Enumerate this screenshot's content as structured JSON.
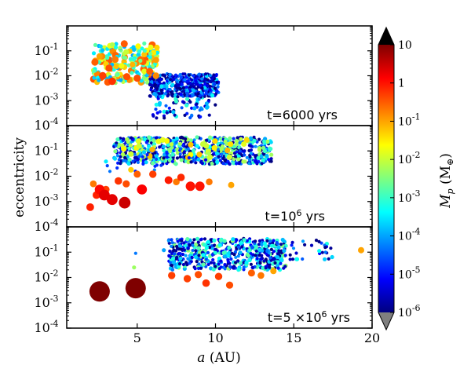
{
  "chart_data": {
    "type": "scatter",
    "xlabel_var": "a",
    "xlabel_unit": "(AU)",
    "ylabel": "eccentricity",
    "xlim": [
      0.5,
      20
    ],
    "ylim": [
      0.0001,
      1
    ],
    "x_ticks": [
      {
        "value": 5,
        "label": "5"
      },
      {
        "value": 10,
        "label": "10"
      },
      {
        "value": 15,
        "label": "15"
      },
      {
        "value": 20,
        "label": "20"
      }
    ],
    "y_ticks": [
      {
        "value": 0.1,
        "base": "10",
        "exp": "-1"
      },
      {
        "value": 0.01,
        "base": "10",
        "exp": "-2"
      },
      {
        "value": 0.001,
        "base": "10",
        "exp": "-3"
      },
      {
        "value": 0.0001,
        "base": "10",
        "exp": "-4"
      }
    ],
    "panels": [
      {
        "id": "t6000",
        "label_pre": "t=6000 yrs",
        "label_sup": "",
        "label_post": "",
        "points": [
          {
            "a": 2.3,
            "e": 0.035,
            "m": 0.3
          },
          {
            "a": 2.6,
            "e": 0.06,
            "m": 0.1
          },
          {
            "a": 3.0,
            "e": 0.03,
            "m": 0.05
          },
          {
            "a": 3.2,
            "e": 0.02,
            "m": 0.4
          },
          {
            "a": 3.6,
            "e": 0.045,
            "m": 0.2
          },
          {
            "a": 4.0,
            "e": 0.025,
            "m": 0.02
          },
          {
            "a": 4.3,
            "e": 0.09,
            "m": 0.01
          },
          {
            "a": 4.7,
            "e": 0.028,
            "m": 0.08
          },
          {
            "a": 5.2,
            "e": 0.04,
            "m": 0.003
          },
          {
            "a": 5.8,
            "e": 0.015,
            "m": 0.3
          },
          {
            "a": 3.4,
            "e": 0.006,
            "m": 0.6
          },
          {
            "a": 2.8,
            "e": 0.01,
            "m": 0.5
          },
          {
            "a": 5.0,
            "e": 0.008,
            "m": 0.4
          },
          {
            "a": 6.2,
            "e": 0.01,
            "m": 0.15
          }
        ],
        "clusters": [
          {
            "a0": 2.2,
            "a1": 6.3,
            "e0": 0.005,
            "e1": 0.2,
            "n": 230,
            "m0": 0.0001,
            "m1": 0.5
          },
          {
            "a0": 5.8,
            "a1": 10.2,
            "e0": 0.0015,
            "e1": 0.012,
            "n": 420,
            "m0": 1e-06,
            "m1": 0.0003
          },
          {
            "a0": 6.0,
            "a1": 10.0,
            "e0": 0.0002,
            "e1": 0.002,
            "n": 80,
            "m0": 1e-06,
            "m1": 0.001
          }
        ]
      },
      {
        "id": "t1e6",
        "label_pre": "t=10",
        "label_sup": "6",
        "label_post": " yrs",
        "points": [
          {
            "a": 2.0,
            "e": 0.0006,
            "m": 0.8
          },
          {
            "a": 2.4,
            "e": 0.0018,
            "m": 0.8
          },
          {
            "a": 2.9,
            "e": 0.0018,
            "m": 2.0
          },
          {
            "a": 3.4,
            "e": 0.0012,
            "m": 2.0
          },
          {
            "a": 4.2,
            "e": 0.0009,
            "m": 3.0
          },
          {
            "a": 2.6,
            "e": 0.003,
            "m": 1.2
          },
          {
            "a": 3.0,
            "e": 0.003,
            "m": 0.5
          },
          {
            "a": 2.2,
            "e": 0.005,
            "m": 0.2
          },
          {
            "a": 4.3,
            "e": 0.005,
            "m": 0.4
          },
          {
            "a": 3.8,
            "e": 0.0065,
            "m": 0.6
          },
          {
            "a": 5.3,
            "e": 0.003,
            "m": 1.4
          },
          {
            "a": 5.0,
            "e": 0.012,
            "m": 0.3
          },
          {
            "a": 6.0,
            "e": 0.012,
            "m": 0.5
          },
          {
            "a": 7.0,
            "e": 0.007,
            "m": 0.9
          },
          {
            "a": 7.5,
            "e": 0.006,
            "m": 0.2
          },
          {
            "a": 7.8,
            "e": 0.009,
            "m": 0.7
          },
          {
            "a": 8.4,
            "e": 0.004,
            "m": 1.0
          },
          {
            "a": 9.0,
            "e": 0.004,
            "m": 1.0
          },
          {
            "a": 9.6,
            "e": 0.006,
            "m": 0.2
          },
          {
            "a": 11.0,
            "e": 0.0045,
            "m": 0.1
          },
          {
            "a": 4.6,
            "e": 0.018,
            "m": 0.05
          }
        ],
        "clusters": [
          {
            "a0": 3.5,
            "a1": 13.6,
            "e0": 0.03,
            "e1": 0.35,
            "n": 650,
            "m0": 1e-06,
            "m1": 0.01
          },
          {
            "a0": 4.0,
            "a1": 12.0,
            "e0": 0.05,
            "e1": 0.3,
            "n": 40,
            "m0": 0.005,
            "m1": 0.1
          },
          {
            "a0": 3.0,
            "a1": 9.0,
            "e0": 0.015,
            "e1": 0.1,
            "n": 25,
            "m0": 1e-05,
            "m1": 0.001
          }
        ]
      },
      {
        "id": "t5e6",
        "label_pre": "t=5 ×10",
        "label_sup": "6",
        "label_post": " yrs",
        "points": [
          {
            "a": 2.6,
            "e": 0.0028,
            "m": 10
          },
          {
            "a": 4.9,
            "e": 0.0038,
            "m": 10
          },
          {
            "a": 7.2,
            "e": 0.012,
            "m": 0.5
          },
          {
            "a": 8.2,
            "e": 0.009,
            "m": 0.5
          },
          {
            "a": 8.9,
            "e": 0.013,
            "m": 0.4
          },
          {
            "a": 9.4,
            "e": 0.006,
            "m": 0.6
          },
          {
            "a": 10.2,
            "e": 0.011,
            "m": 0.5
          },
          {
            "a": 10.9,
            "e": 0.005,
            "m": 0.4
          },
          {
            "a": 12.3,
            "e": 0.015,
            "m": 0.3
          },
          {
            "a": 12.9,
            "e": 0.012,
            "m": 0.2
          },
          {
            "a": 13.7,
            "e": 0.018,
            "m": 0.1
          },
          {
            "a": 4.8,
            "e": 0.025,
            "m": 0.005
          },
          {
            "a": 4.9,
            "e": 0.09,
            "m": 5e-05
          },
          {
            "a": 19.3,
            "e": 0.12,
            "m": 0.1
          },
          {
            "a": 6.7,
            "e": 0.12,
            "m": 0.0001
          }
        ],
        "clusters": [
          {
            "a0": 7.0,
            "a1": 14.5,
            "e0": 0.02,
            "e1": 0.35,
            "n": 500,
            "m0": 1e-06,
            "m1": 0.005
          },
          {
            "a0": 12.5,
            "a1": 17.5,
            "e0": 0.05,
            "e1": 0.3,
            "n": 60,
            "m0": 1e-06,
            "m1": 0.001
          }
        ]
      }
    ],
    "colorbar": {
      "label_var": "M",
      "label_sub": "p",
      "label_unit_pre": "(M",
      "label_unit_sub": "⊕",
      "label_unit_post": ")",
      "min": 1e-06,
      "max": 10,
      "extend": "both",
      "ticks": [
        {
          "value": 10,
          "base": "10",
          "exp": ""
        },
        {
          "value": 1,
          "base": "1",
          "exp": ""
        },
        {
          "value": 0.1,
          "base": "10",
          "exp": "-1"
        },
        {
          "value": 0.01,
          "base": "10",
          "exp": "-2"
        },
        {
          "value": 0.001,
          "base": "10",
          "exp": "-3"
        },
        {
          "value": 0.0001,
          "base": "10",
          "exp": "-4"
        },
        {
          "value": 1e-05,
          "base": "10",
          "exp": "-5"
        },
        {
          "value": 1e-06,
          "base": "10",
          "exp": "-6"
        }
      ],
      "colormap": [
        "#00007f",
        "#0000ff",
        "#007fff",
        "#00ffff",
        "#7fff7f",
        "#ffff00",
        "#ff7f00",
        "#ff0000",
        "#7f0000"
      ],
      "under_color": "#7f7f7f",
      "over_color": "#000000"
    }
  }
}
